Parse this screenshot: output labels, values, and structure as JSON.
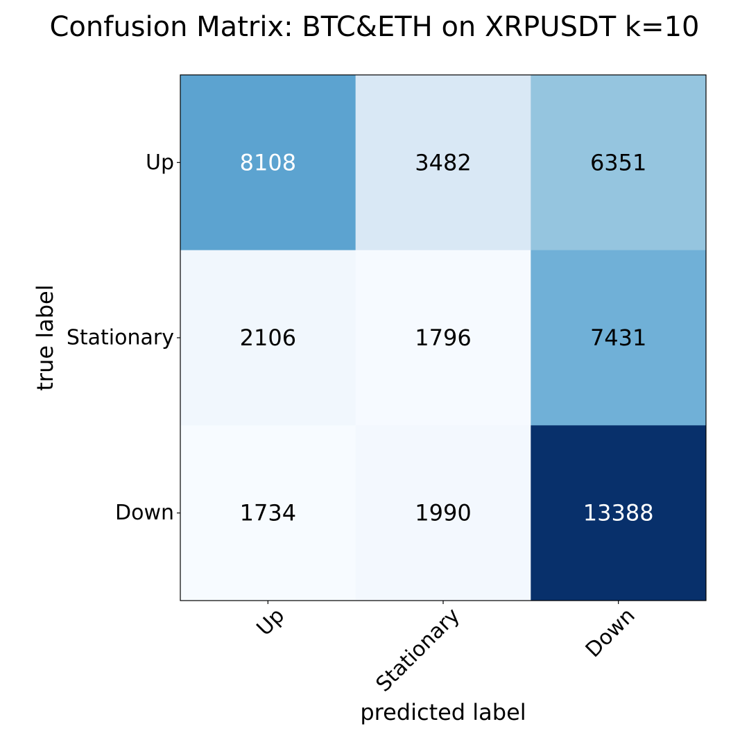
{
  "chart_data": {
    "type": "heatmap",
    "title": "Confusion Matrix: BTC&ETH on XRPUSDT k=10",
    "xlabel": "predicted label",
    "ylabel": "true label",
    "x_categories": [
      "Up",
      "Stationary",
      "Down"
    ],
    "y_categories": [
      "Up",
      "Stationary",
      "Down"
    ],
    "values": [
      [
        8108,
        3482,
        6351
      ],
      [
        2106,
        1796,
        7431
      ],
      [
        1734,
        1990,
        13388
      ]
    ],
    "colormap": "Blues",
    "grid": false,
    "legend": "none"
  }
}
